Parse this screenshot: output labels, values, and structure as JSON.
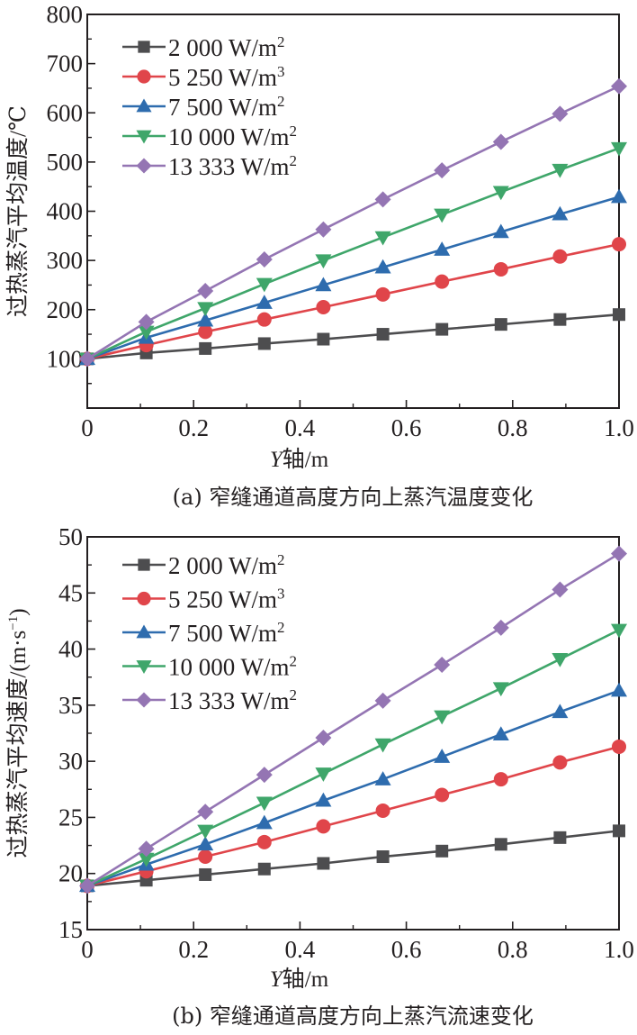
{
  "chart_data": [
    {
      "type": "line",
      "panel_id": "a",
      "caption": "(a) 窄缝通道高度方向上蒸汽温度变化",
      "title": "",
      "xlabel_italic": "Y",
      "xlabel_rest": "轴/m",
      "ylabel": "过热蒸汽平均温度/℃",
      "xlim": [
        0,
        1.0
      ],
      "ylim": [
        0,
        800
      ],
      "xticks": [
        0,
        0.2,
        0.4,
        0.6,
        0.8,
        1.0
      ],
      "xtick_labels": [
        "0",
        "0.2",
        "0.4",
        "0.6",
        "0.8",
        "1.0"
      ],
      "yticks": [
        100,
        200,
        300,
        400,
        500,
        600,
        700,
        800
      ],
      "ytick_labels": [
        "100",
        "200",
        "300",
        "400",
        "500",
        "600",
        "700",
        "800"
      ],
      "grid": false,
      "legend_position": "top-left",
      "x": [
        0,
        0.111,
        0.222,
        0.333,
        0.444,
        0.556,
        0.667,
        0.778,
        0.889,
        1.0
      ],
      "series": [
        {
          "name": "2 000 W/m",
          "sup": "2",
          "color": "#4d4d4f",
          "marker": "square",
          "values": [
            100,
            112,
            121,
            131,
            140,
            150,
            160,
            170,
            180,
            190
          ]
        },
        {
          "name": "5 250 W/m",
          "sup": "3",
          "color": "#e0454a",
          "marker": "circle",
          "values": [
            100,
            128,
            155,
            180,
            205,
            231,
            257,
            282,
            308,
            333
          ]
        },
        {
          "name": "7 500 W/m",
          "sup": "2",
          "color": "#2e6cae",
          "marker": "triangle-up",
          "values": [
            100,
            143,
            178,
            214,
            250,
            286,
            322,
            358,
            394,
            429
          ]
        },
        {
          "name": "10 000 W/m",
          "sup": "2",
          "color": "#3fa66a",
          "marker": "triangle-down",
          "values": [
            100,
            155,
            203,
            252,
            300,
            347,
            393,
            439,
            484,
            528
          ]
        },
        {
          "name": "13 333 W/m",
          "sup": "2",
          "color": "#9475b3",
          "marker": "diamond",
          "values": [
            100,
            175,
            238,
            302,
            363,
            424,
            483,
            541,
            598,
            654
          ]
        }
      ]
    },
    {
      "type": "line",
      "panel_id": "b",
      "caption": "(b) 窄缝通道高度方向上蒸汽流速变化",
      "title": "",
      "xlabel_italic": "Y",
      "xlabel_rest": "轴/m",
      "ylabel": "过热蒸汽平均速度/(m·s",
      "ylabel_sup": "−1",
      "ylabel_end": ")",
      "xlim": [
        0,
        1.0
      ],
      "ylim": [
        15,
        50
      ],
      "xticks": [
        0,
        0.2,
        0.4,
        0.6,
        0.8,
        1.0
      ],
      "xtick_labels": [
        "0",
        "0.2",
        "0.4",
        "0.6",
        "0.8",
        "1.0"
      ],
      "yticks": [
        15,
        20,
        25,
        30,
        35,
        40,
        45,
        50
      ],
      "ytick_labels": [
        "15",
        "20",
        "25",
        "30",
        "35",
        "40",
        "45",
        "50"
      ],
      "grid": false,
      "legend_position": "top-left",
      "x": [
        0,
        0.111,
        0.222,
        0.333,
        0.444,
        0.556,
        0.667,
        0.778,
        0.889,
        1.0
      ],
      "series": [
        {
          "name": "2 000 W/m",
          "sup": "2",
          "color": "#4d4d4f",
          "marker": "square",
          "values": [
            18.9,
            19.4,
            19.9,
            20.4,
            20.9,
            21.5,
            22.0,
            22.6,
            23.2,
            23.8
          ]
        },
        {
          "name": "5 250 W/m",
          "sup": "3",
          "color": "#e0454a",
          "marker": "circle",
          "values": [
            18.9,
            20.2,
            21.5,
            22.8,
            24.2,
            25.6,
            27.0,
            28.4,
            29.9,
            31.3
          ]
        },
        {
          "name": "7 500 W/m",
          "sup": "2",
          "color": "#2e6cae",
          "marker": "triangle-up",
          "values": [
            18.9,
            20.8,
            22.6,
            24.5,
            26.5,
            28.4,
            30.4,
            32.4,
            34.4,
            36.3
          ]
        },
        {
          "name": "10 000 W/m",
          "sup": "2",
          "color": "#3fa66a",
          "marker": "triangle-down",
          "values": [
            18.9,
            21.3,
            23.8,
            26.3,
            28.9,
            31.5,
            34.0,
            36.5,
            39.1,
            41.7
          ]
        },
        {
          "name": "13 333 W/m",
          "sup": "2",
          "color": "#9475b3",
          "marker": "diamond",
          "values": [
            18.9,
            22.2,
            25.5,
            28.8,
            32.1,
            35.4,
            38.6,
            41.9,
            45.3,
            48.5
          ]
        }
      ]
    }
  ]
}
